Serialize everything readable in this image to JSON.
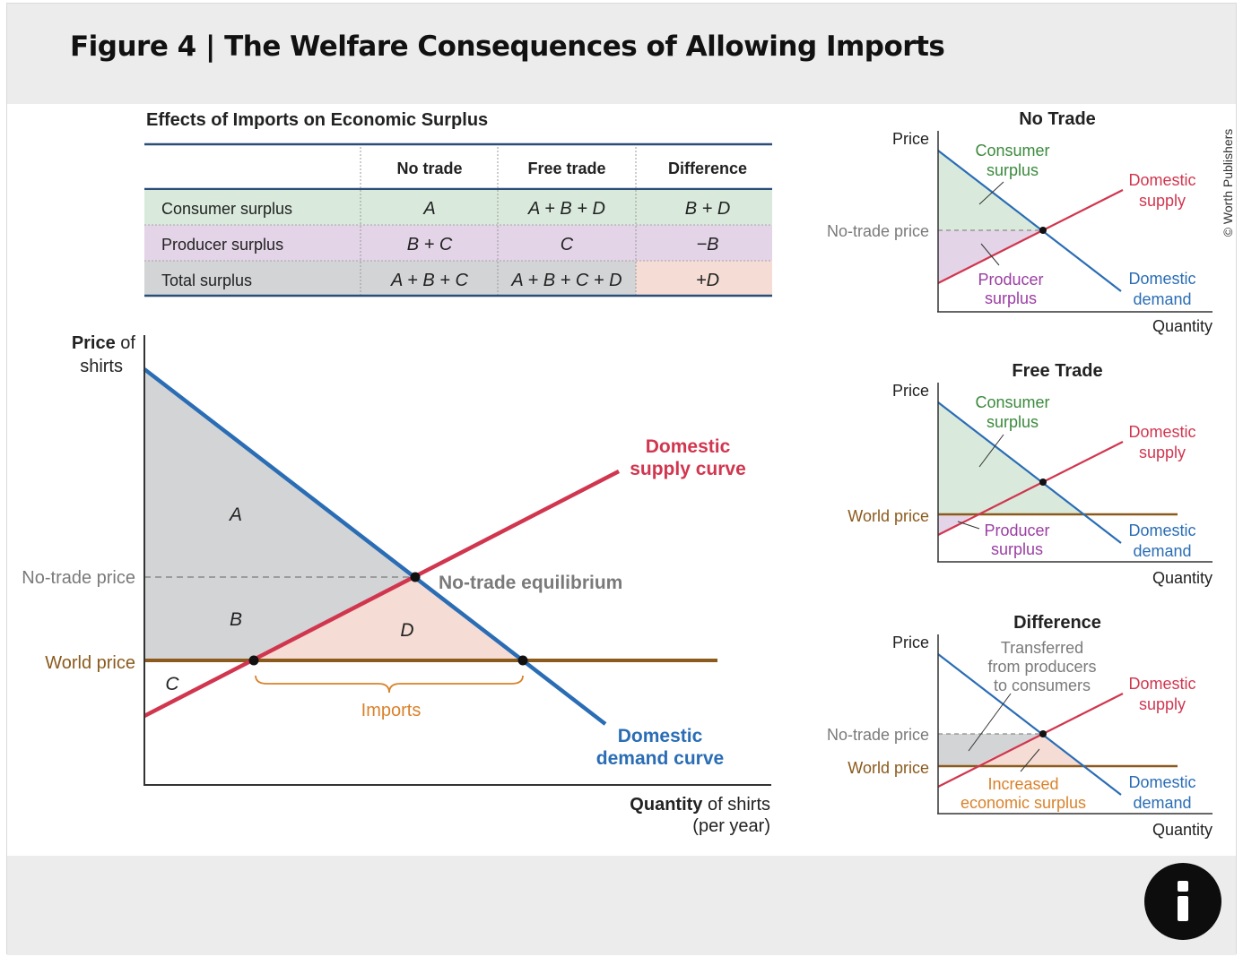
{
  "figure": {
    "title": "Figure 4 | The Welfare Consequences of Allowing Imports",
    "credit": "© Worth Publishers"
  },
  "table": {
    "title": "Effects of Imports on Economic Surplus",
    "columns": [
      "No trade",
      "Free trade",
      "Difference"
    ],
    "rows": [
      {
        "label": "Consumer surplus",
        "cells": [
          "A",
          "A + B + D",
          "B + D"
        ],
        "color": "#d9eadc"
      },
      {
        "label": "Producer surplus",
        "cells": [
          "B + C",
          "C",
          "−B"
        ],
        "color": "#e3d4e7"
      },
      {
        "label": "Total surplus",
        "cells": [
          "A + B + C",
          "A + B + C + D",
          "+D"
        ],
        "color": "#d3d4d6",
        "highlight": "#f5ddd5"
      }
    ]
  },
  "main_chart": {
    "y_label_bold": "Price",
    "y_label_rest": " of",
    "y_label_line2": "shirts",
    "x_label_bold": "Quantity",
    "x_label_rest": " of shirts",
    "x_label_line2": "(per year)",
    "no_trade_price": "No-trade price",
    "world_price": "World price",
    "supply_label_1": "Domestic",
    "supply_label_2": "supply curve",
    "demand_label_1": "Domestic",
    "demand_label_2": "demand curve",
    "equilibrium_label": "No-trade equilibrium",
    "imports_label": "Imports",
    "area_a": "A",
    "area_b": "B",
    "area_c": "C",
    "area_d": "D"
  },
  "small_charts": {
    "price": "Price",
    "quantity": "Quantity",
    "domestic": "Domestic",
    "supply": "supply",
    "demand": "demand",
    "no_trade": {
      "title": "No Trade",
      "consumer_1": "Consumer",
      "consumer_2": "surplus",
      "producer_1": "Producer",
      "producer_2": "surplus",
      "no_trade_price": "No-trade price"
    },
    "free_trade": {
      "title": "Free Trade",
      "consumer_1": "Consumer",
      "consumer_2": "surplus",
      "producer_1": "Producer",
      "producer_2": "surplus",
      "world_price": "World price"
    },
    "difference": {
      "title": "Difference",
      "transferred_1": "Transferred",
      "transferred_2": "from producers",
      "transferred_3": "to consumers",
      "increased_1": "Increased",
      "increased_2": "economic surplus",
      "no_trade_price": "No-trade price",
      "world_price": "World price"
    }
  },
  "colors": {
    "supply": "#d1364f",
    "demand": "#2a6db5",
    "world": "#8b5a1c",
    "consumer_fill": "#d9eadc",
    "producer_fill": "#e3d4e7",
    "gray_fill": "#d3d4d6",
    "gain_fill": "#f5ddd5",
    "table_rule": "#2b4e78",
    "consumer_text": "#3b8a3d",
    "producer_text": "#9b3ea3",
    "imports": "#d9822b"
  }
}
